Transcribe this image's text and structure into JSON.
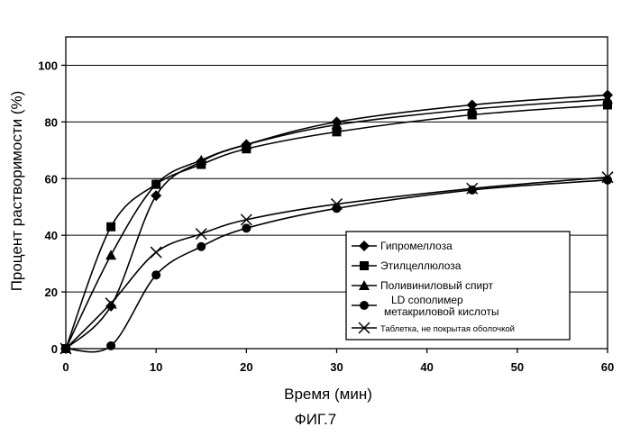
{
  "chart_data": {
    "type": "line",
    "xlabel": "Время (мин)",
    "ylabel": "Процент растворимости (%)",
    "xlim": [
      0,
      60
    ],
    "ylim": [
      0,
      110
    ],
    "x_ticks": [
      0,
      10,
      20,
      30,
      40,
      50,
      60
    ],
    "y_ticks": [
      0,
      20,
      40,
      60,
      80,
      100
    ],
    "grid": "horizontal",
    "legend_position": "bottom-right",
    "series": [
      {
        "name": "Гипромеллоза",
        "marker": "diamond",
        "x": [
          0,
          5,
          10,
          15,
          20,
          30,
          45,
          60
        ],
        "y": [
          0,
          15,
          54,
          66,
          72,
          80,
          86,
          89.5
        ]
      },
      {
        "name": "Этилцеллюлоза",
        "marker": "square",
        "x": [
          0,
          5,
          10,
          15,
          20,
          30,
          45,
          60
        ],
        "y": [
          0,
          43,
          58,
          65,
          70.5,
          76.5,
          82.5,
          86
        ]
      },
      {
        "name": "Поливиниловый спирт",
        "marker": "triangle",
        "x": [
          0,
          5,
          10,
          15,
          20,
          30,
          45,
          60
        ],
        "y": [
          0,
          33,
          58,
          66.5,
          72,
          79,
          84.5,
          88
        ]
      },
      {
        "name": "LD сополимер метакриловой кислоты",
        "marker": "circle",
        "x": [
          0,
          5,
          10,
          15,
          20,
          30,
          45,
          60
        ],
        "y": [
          0,
          1,
          26,
          36,
          42.5,
          49.5,
          56,
          59.5
        ]
      },
      {
        "name": "Таблетка, не покрытая оболочкой",
        "marker": "x",
        "x": [
          0,
          5,
          10,
          15,
          20,
          30,
          45,
          60
        ],
        "y": [
          0,
          16,
          34,
          40.5,
          45.5,
          51,
          56.5,
          60.5
        ]
      }
    ]
  },
  "legend": {
    "items": [
      {
        "lines": [
          "Гипромеллоза"
        ],
        "marker": "diamond"
      },
      {
        "lines": [
          "Этилцеллюлоза"
        ],
        "marker": "square"
      },
      {
        "lines": [
          "Поливиниловый спирт"
        ],
        "marker": "triangle"
      },
      {
        "lines": [
          "LD сополимер",
          "метакриловой кислоты"
        ],
        "marker": "circle"
      },
      {
        "lines": [
          "Таблетка, не покрытая оболочкой"
        ],
        "marker": "x"
      }
    ]
  },
  "caption": "ФИГ.7"
}
